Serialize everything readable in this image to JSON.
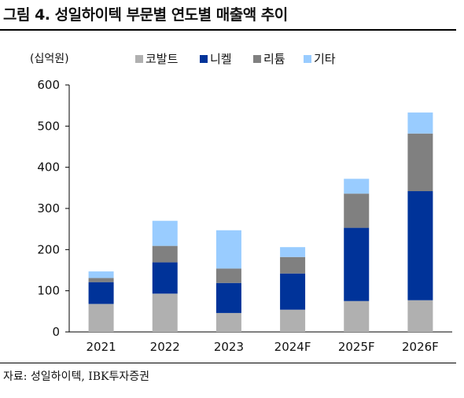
{
  "figure": {
    "title": "그림 4. 성일하이텍 부문별 연도별 매출액 추이",
    "source": "자료: 성일하이텍, IBK투자증권"
  },
  "chart_data": {
    "type": "bar",
    "stacked": true,
    "unit_label": "(십억원)",
    "categories": [
      "2021",
      "2022",
      "2023",
      "2024F",
      "2025F",
      "2026F"
    ],
    "series": [
      {
        "name": "코발트",
        "color": "#b0b0b0",
        "values": [
          68,
          93,
          46,
          54,
          75,
          77
        ]
      },
      {
        "name": "니켈",
        "color": "#003399",
        "values": [
          53,
          76,
          73,
          88,
          178,
          265
        ]
      },
      {
        "name": "리튬",
        "color": "#808080",
        "values": [
          10,
          40,
          35,
          40,
          83,
          140
        ]
      },
      {
        "name": "기타",
        "color": "#99ccff",
        "values": [
          16,
          61,
          93,
          24,
          36,
          51
        ]
      }
    ],
    "ylim": [
      0,
      600
    ],
    "yticks": [
      0,
      100,
      200,
      300,
      400,
      500,
      600
    ],
    "legend_position": "top",
    "grid": false
  }
}
